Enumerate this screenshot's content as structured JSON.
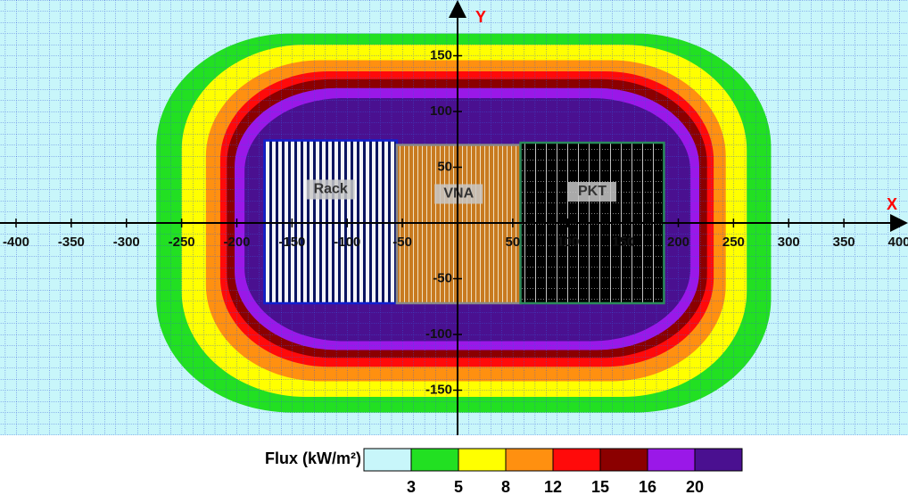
{
  "chart_data": {
    "type": "contour",
    "x_label": "X",
    "y_label": "Y",
    "xlim": [
      -400,
      400
    ],
    "ylim": [
      -200,
      200
    ],
    "xticks": [
      -400,
      -350,
      -300,
      -250,
      -200,
      -150,
      -100,
      -50,
      50,
      100,
      150,
      200,
      250,
      300,
      350,
      400
    ],
    "yticks": [
      -150,
      -100,
      -50,
      50,
      100,
      150
    ],
    "background": "#c8f6fa",
    "contours": [
      {
        "level": 3,
        "color": "#22e022",
        "x": [
          -273,
          284
        ],
        "y": [
          -170,
          170
        ]
      },
      {
        "level": 5,
        "color": "#ffff00",
        "x": [
          -250,
          262
        ],
        "y": [
          -156,
          160
        ]
      },
      {
        "level": 8,
        "color": "#ff9010",
        "x": [
          -228,
          243
        ],
        "y": [
          -142,
          146
        ]
      },
      {
        "level": 12,
        "color": "#ff0a0a",
        "x": [
          -215,
          232
        ],
        "y": [
          -129,
          136
        ]
      },
      {
        "level": 15,
        "color": "#8b0000",
        "x": [
          -209,
          226
        ],
        "y": [
          -121,
          129
        ]
      },
      {
        "level": 16,
        "color": "#9a18e8",
        "x": [
          -202,
          219
        ],
        "y": [
          -114,
          121
        ]
      },
      {
        "level": 20,
        "color": "#4a1090",
        "x": [
          -193,
          211
        ],
        "y": [
          -106,
          112
        ]
      }
    ],
    "regions": [
      {
        "label": "Rack",
        "x": [
          -175,
          -55
        ],
        "y": [
          -72,
          74
        ]
      },
      {
        "label": "VNA",
        "x": [
          -55,
          57
        ],
        "y": [
          -72,
          70
        ]
      },
      {
        "label": "PKT",
        "x": [
          57,
          187
        ],
        "y": [
          -72,
          72
        ]
      }
    ],
    "legend": {
      "title": "Flux (kW/m²)"
    }
  }
}
